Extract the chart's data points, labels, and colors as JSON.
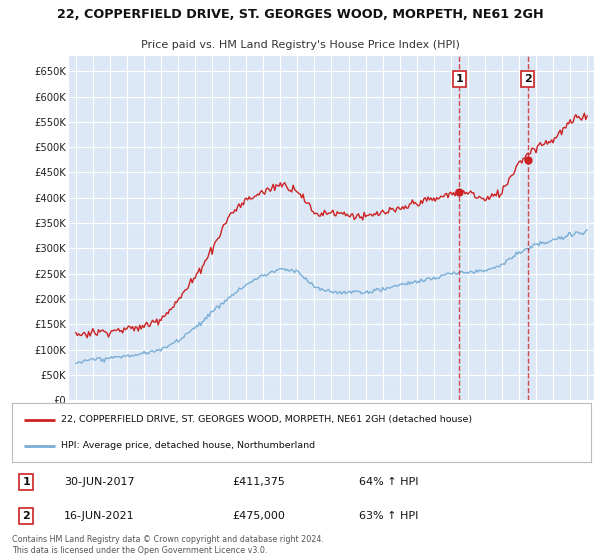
{
  "title": "22, COPPERFIELD DRIVE, ST. GEORGES WOOD, MORPETH, NE61 2GH",
  "subtitle": "Price paid vs. HM Land Registry's House Price Index (HPI)",
  "background_color": "#ffffff",
  "chart_bg_color": "#dce8f5",
  "ylim": [
    0,
    680000
  ],
  "yticks": [
    0,
    50000,
    100000,
    150000,
    200000,
    250000,
    300000,
    350000,
    400000,
    450000,
    500000,
    550000,
    600000,
    650000
  ],
  "ytick_labels": [
    "£0",
    "£50K",
    "£100K",
    "£150K",
    "£200K",
    "£250K",
    "£300K",
    "£350K",
    "£400K",
    "£450K",
    "£500K",
    "£550K",
    "£600K",
    "£650K"
  ],
  "red_line_color": "#cc2222",
  "blue_line_color": "#7aaed6",
  "sale1": {
    "date": "30-JUN-2017",
    "price": 411375,
    "year": 2017.5,
    "note": "64% ↑ HPI"
  },
  "sale2": {
    "date": "16-JUN-2021",
    "price": 475000,
    "year": 2021.5,
    "note": "63% ↑ HPI"
  },
  "legend_red_label": "22, COPPERFIELD DRIVE, ST. GEORGES WOOD, MORPETH, NE61 2GH (detached house)",
  "legend_blue_label": "HPI: Average price, detached house, Northumberland",
  "footer": "Contains HM Land Registry data © Crown copyright and database right 2024.\nThis data is licensed under the Open Government Licence v3.0.",
  "red_line_key": [
    1995,
    1996,
    1997,
    1998,
    1999,
    2000,
    2001,
    2002,
    2003,
    2004,
    2005,
    2006,
    2007,
    2008,
    2009,
    2010,
    2011,
    2012,
    2013,
    2014,
    2015,
    2016,
    2017,
    2018,
    2019,
    2020,
    2021,
    2022,
    2023,
    2024,
    2025
  ],
  "red_line_val": [
    130000,
    135000,
    138000,
    143000,
    148000,
    165000,
    200000,
    245000,
    300000,
    365000,
    395000,
    410000,
    430000,
    420000,
    370000,
    375000,
    370000,
    365000,
    375000,
    380000,
    395000,
    400000,
    411375,
    415000,
    400000,
    415000,
    475000,
    505000,
    520000,
    555000,
    570000
  ],
  "blue_line_key": [
    1995,
    1996,
    1997,
    1998,
    1999,
    2000,
    2001,
    2002,
    2003,
    2004,
    2005,
    2006,
    2007,
    2008,
    2009,
    2010,
    2011,
    2012,
    2013,
    2014,
    2015,
    2016,
    2017,
    2018,
    2019,
    2020,
    2021,
    2022,
    2023,
    2024,
    2025
  ],
  "blue_line_val": [
    75000,
    80000,
    84000,
    88000,
    93000,
    100000,
    120000,
    145000,
    175000,
    205000,
    230000,
    248000,
    260000,
    255000,
    225000,
    215000,
    215000,
    215000,
    220000,
    228000,
    235000,
    240000,
    250000,
    252000,
    255000,
    268000,
    290000,
    305000,
    315000,
    325000,
    335000
  ]
}
